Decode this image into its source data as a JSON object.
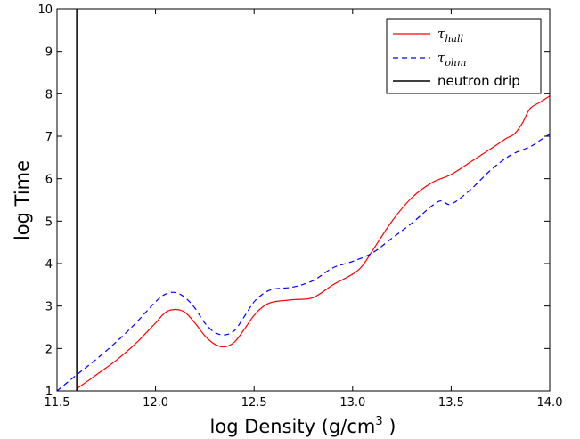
{
  "chart_data": {
    "type": "line",
    "xlabel_main": "log Density (g/cm",
    "xlabel_sup": "3",
    "xlabel_end": " )",
    "ylabel": "log Time",
    "xlim": [
      11.5,
      14.0
    ],
    "ylim": [
      1,
      10
    ],
    "xticks": [
      "11.5",
      "12.0",
      "12.5",
      "13.0",
      "13.5",
      "14.0"
    ],
    "yticks": [
      "1",
      "2",
      "3",
      "4",
      "5",
      "6",
      "7",
      "8",
      "9",
      "10"
    ],
    "grid": false,
    "legend_position": "top-right",
    "series": [
      {
        "name_main": "τ",
        "name_sub": "hall",
        "color": "#ff0000",
        "style": "solid",
        "x": [
          11.6,
          11.7,
          11.8,
          11.9,
          12.0,
          12.05,
          12.1,
          12.15,
          12.2,
          12.25,
          12.3,
          12.35,
          12.4,
          12.45,
          12.5,
          12.55,
          12.6,
          12.7,
          12.8,
          12.9,
          13.0,
          13.05,
          13.1,
          13.2,
          13.3,
          13.4,
          13.5,
          13.6,
          13.7,
          13.78,
          13.82,
          13.86,
          13.9,
          13.95,
          14.0
        ],
        "y": [
          1.05,
          1.38,
          1.72,
          2.12,
          2.6,
          2.85,
          2.92,
          2.85,
          2.6,
          2.3,
          2.1,
          2.04,
          2.15,
          2.45,
          2.78,
          3.0,
          3.1,
          3.15,
          3.2,
          3.5,
          3.75,
          3.95,
          4.3,
          5.0,
          5.55,
          5.9,
          6.1,
          6.4,
          6.7,
          6.95,
          7.05,
          7.3,
          7.65,
          7.8,
          7.95
        ]
      },
      {
        "name_main": "τ",
        "name_sub": "ohm",
        "color": "#0000ff",
        "style": "dashed",
        "x": [
          11.5,
          11.6,
          11.7,
          11.8,
          11.9,
          12.0,
          12.05,
          12.1,
          12.15,
          12.2,
          12.25,
          12.3,
          12.35,
          12.4,
          12.45,
          12.5,
          12.55,
          12.6,
          12.7,
          12.8,
          12.9,
          13.0,
          13.1,
          13.2,
          13.3,
          13.4,
          13.45,
          13.5,
          13.6,
          13.7,
          13.8,
          13.9,
          13.95,
          14.0
        ],
        "y": [
          1.0,
          1.38,
          1.75,
          2.15,
          2.6,
          3.1,
          3.28,
          3.32,
          3.2,
          2.95,
          2.6,
          2.38,
          2.32,
          2.42,
          2.75,
          3.1,
          3.3,
          3.4,
          3.45,
          3.6,
          3.9,
          4.05,
          4.25,
          4.6,
          4.95,
          5.35,
          5.48,
          5.4,
          5.75,
          6.2,
          6.55,
          6.75,
          6.9,
          7.05
        ]
      },
      {
        "name_main": "neutron drip",
        "color": "#000000",
        "style": "vertical",
        "x": [
          11.6,
          11.6
        ],
        "y": [
          1,
          10
        ]
      }
    ]
  }
}
